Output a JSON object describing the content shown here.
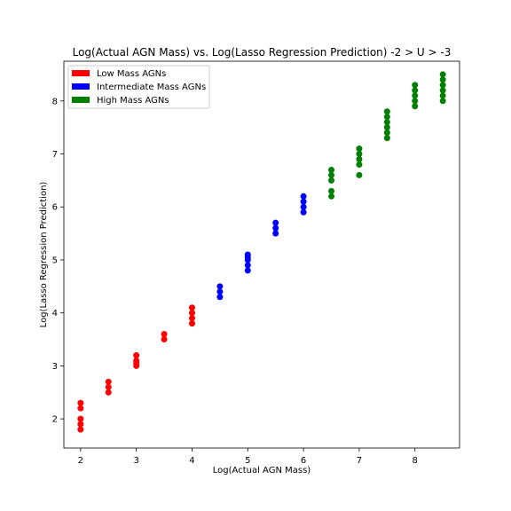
{
  "chart_data": {
    "type": "scatter",
    "title": "Log(Actual AGN Mass) vs. Log(Lasso Regression Prediction) -2 > U > -3",
    "xlabel": "Log(Actual AGN Mass)",
    "ylabel": "Log(Lasso Regression Prediction)",
    "xlim": [
      1.7,
      8.8
    ],
    "ylim": [
      1.45,
      8.75
    ],
    "xticks": [
      2,
      3,
      4,
      5,
      6,
      7,
      8
    ],
    "yticks": [
      2,
      3,
      4,
      5,
      6,
      7,
      8
    ],
    "grid": false,
    "legend_position": "top-left",
    "series": [
      {
        "name": "Low Mass AGNs",
        "color": "#ff0000",
        "points": [
          [
            2,
            1.8
          ],
          [
            2,
            1.9
          ],
          [
            2,
            2.0
          ],
          [
            2,
            2.2
          ],
          [
            2,
            2.3
          ],
          [
            2.5,
            2.5
          ],
          [
            2.5,
            2.6
          ],
          [
            2.5,
            2.7
          ],
          [
            3,
            3.0
          ],
          [
            3,
            3.05
          ],
          [
            3,
            3.1
          ],
          [
            3,
            3.2
          ],
          [
            3.5,
            3.5
          ],
          [
            3.5,
            3.6
          ],
          [
            4,
            3.8
          ],
          [
            4,
            3.9
          ],
          [
            4,
            4.0
          ],
          [
            4,
            4.1
          ]
        ]
      },
      {
        "name": "Intermediate Mass AGNs",
        "color": "#0000ff",
        "points": [
          [
            4.5,
            4.3
          ],
          [
            4.5,
            4.4
          ],
          [
            4.5,
            4.5
          ],
          [
            5,
            4.8
          ],
          [
            5,
            4.9
          ],
          [
            5,
            5.0
          ],
          [
            5,
            5.05
          ],
          [
            5,
            5.1
          ],
          [
            5.5,
            5.5
          ],
          [
            5.5,
            5.6
          ],
          [
            5.5,
            5.7
          ],
          [
            6,
            5.9
          ],
          [
            6,
            6.0
          ],
          [
            6,
            6.1
          ],
          [
            6,
            6.2
          ]
        ]
      },
      {
        "name": "High Mass AGNs",
        "color": "#008000",
        "points": [
          [
            6.5,
            6.2
          ],
          [
            6.5,
            6.3
          ],
          [
            6.5,
            6.5
          ],
          [
            6.5,
            6.6
          ],
          [
            6.5,
            6.7
          ],
          [
            7,
            6.6
          ],
          [
            7,
            6.8
          ],
          [
            7,
            6.9
          ],
          [
            7,
            7.0
          ],
          [
            7,
            7.1
          ],
          [
            7.5,
            7.3
          ],
          [
            7.5,
            7.4
          ],
          [
            7.5,
            7.5
          ],
          [
            7.5,
            7.6
          ],
          [
            7.5,
            7.7
          ],
          [
            7.5,
            7.8
          ],
          [
            8,
            7.9
          ],
          [
            8,
            8.0
          ],
          [
            8,
            8.1
          ],
          [
            8,
            8.2
          ],
          [
            8,
            8.3
          ],
          [
            8.5,
            8.0
          ],
          [
            8.5,
            8.1
          ],
          [
            8.5,
            8.2
          ],
          [
            8.5,
            8.3
          ],
          [
            8.5,
            8.4
          ],
          [
            8.5,
            8.5
          ]
        ]
      }
    ]
  }
}
